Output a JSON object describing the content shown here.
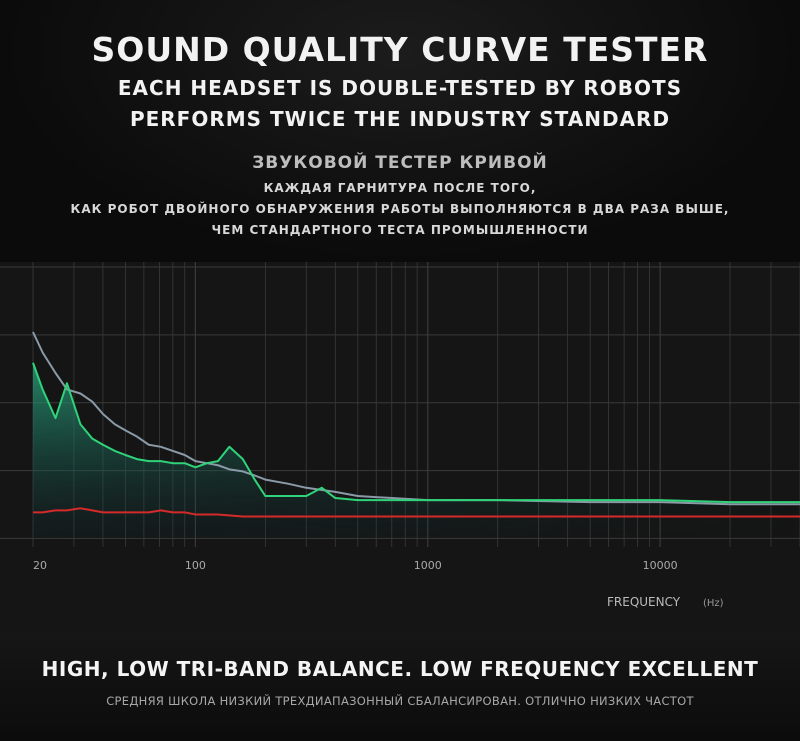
{
  "header": {
    "title": "SOUND QUALITY CURVE TESTER",
    "line1": "EACH HEADSET IS DOUBLE-TESTED BY ROBOTS",
    "line2": "PERFORMS TWICE THE INDUSTRY STANDARD",
    "ru_title": "ЗВУКОВОЙ ТЕСТЕР КРИВОЙ",
    "ru_line1": "КАЖДАЯ ГАРНИТУРА ПОСЛЕ ТОГО,",
    "ru_line2": "КАК РОБОТ ДВОЙНОГО ОБНАРУЖЕНИЯ РАБОТЫ ВЫПОЛНЯЮТСЯ В ДВА РАЗА ВЫШЕ,",
    "ru_line3": "ЧЕМ СТАНДАРТНОГО ТЕСТА ПРОМЫШЛЕННОСТИ"
  },
  "footer": {
    "headline": "HIGH, LOW TRI-BAND BALANCE. LOW FREQUENCY EXCELLENT",
    "ru_headline": "СРЕДНЯЯ ШКОЛА НИЗКИЙ ТРЕХДИАПАЗОННЫЙ СБАЛАНСИРОВАН. ОТЛИЧНО НИЗКИХ ЧАСТОТ"
  },
  "colors": {
    "green": "#2fd47a",
    "gray": "#8a9aa6",
    "red": "#d42a2a",
    "grid": "#3a3a3a",
    "fill_top": "#2aa37a"
  },
  "chart_data": {
    "type": "line",
    "title": "",
    "xlabel": "FREQUENCY",
    "xlabel_unit": "(Hz)",
    "ylabel": "",
    "xscale": "log",
    "xlim": [
      20,
      40000
    ],
    "ylim": [
      0,
      100
    ],
    "xticks": [
      20,
      100,
      1000,
      10000
    ],
    "xtick_labels": [
      "20",
      "100",
      "1000",
      "10000"
    ],
    "grid": true,
    "series": [
      {
        "name": "gray",
        "x": [
          20,
          22,
          25,
          28,
          32,
          36,
          40,
          45,
          50,
          56,
          63,
          71,
          80,
          90,
          100,
          112,
          125,
          140,
          160,
          180,
          200,
          250,
          300,
          400,
          500,
          700,
          1000,
          2000,
          5000,
          10000,
          20000,
          40000
        ],
        "values": [
          100,
          90,
          80,
          72,
          70,
          66,
          60,
          55,
          52,
          49,
          45,
          44,
          42,
          40,
          37,
          36,
          35,
          33,
          32,
          30,
          28,
          26,
          24,
          22,
          20,
          19,
          18,
          18,
          17,
          17,
          16,
          16
        ]
      },
      {
        "name": "green",
        "x": [
          20,
          22,
          25,
          28,
          32,
          36,
          40,
          45,
          50,
          56,
          63,
          71,
          80,
          90,
          100,
          112,
          125,
          140,
          160,
          180,
          200,
          250,
          300,
          350,
          400,
          500,
          700,
          1000,
          2000,
          5000,
          10000,
          20000,
          40000
        ],
        "values": [
          85,
          72,
          58,
          75,
          55,
          48,
          45,
          42,
          40,
          38,
          37,
          37,
          36,
          36,
          34,
          36,
          37,
          44,
          38,
          28,
          20,
          20,
          20,
          24,
          19,
          18,
          18,
          18,
          18,
          18,
          18,
          17,
          17
        ]
      },
      {
        "name": "red",
        "x": [
          20,
          22,
          25,
          28,
          32,
          36,
          40,
          45,
          50,
          56,
          63,
          71,
          80,
          90,
          100,
          125,
          160,
          200,
          300,
          500,
          1000,
          2000,
          5000,
          10000,
          20000,
          40000
        ],
        "values": [
          12,
          12,
          13,
          13,
          14,
          13,
          12,
          12,
          12,
          12,
          12,
          13,
          12,
          12,
          11,
          11,
          10,
          10,
          10,
          10,
          10,
          10,
          10,
          10,
          10,
          10
        ]
      }
    ]
  }
}
